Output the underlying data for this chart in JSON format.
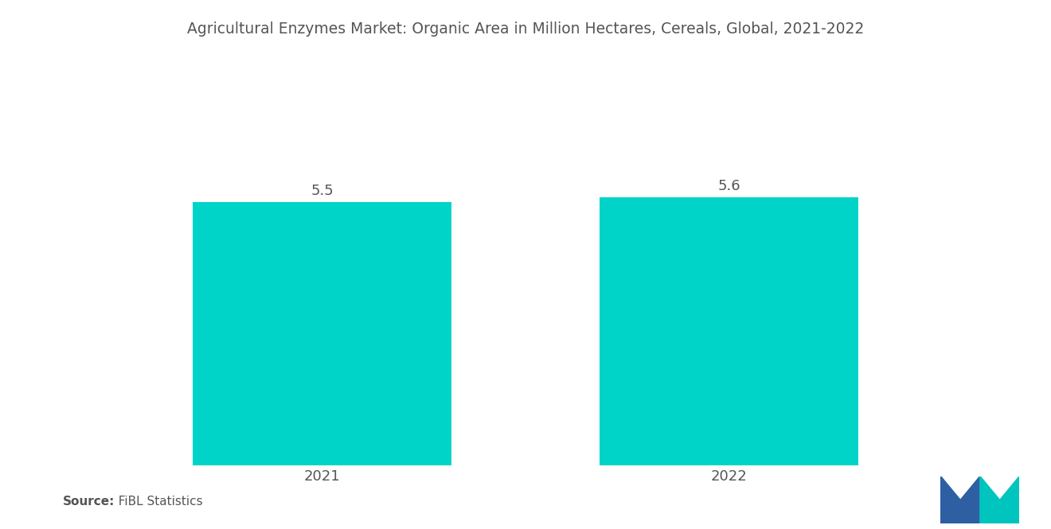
{
  "title": "Agricultural Enzymes Market: Organic Area in Million Hectares, Cereals, Global, 2021-2022",
  "categories": [
    "2021",
    "2022"
  ],
  "values": [
    5.5,
    5.6
  ],
  "bar_color": "#00D4C8",
  "bar_width": 0.28,
  "ylim": [
    0,
    7.5
  ],
  "value_labels": [
    "5.5",
    "5.6"
  ],
  "source_label": "Source:",
  "source_text": "  FiBL Statistics",
  "title_fontsize": 13.5,
  "tick_fontsize": 13,
  "value_fontsize": 13,
  "background_color": "#ffffff",
  "text_color": "#555555",
  "logo_blue": "#2E5FA3",
  "logo_teal": "#00C4BE",
  "bar_positions": [
    0.28,
    0.72
  ]
}
